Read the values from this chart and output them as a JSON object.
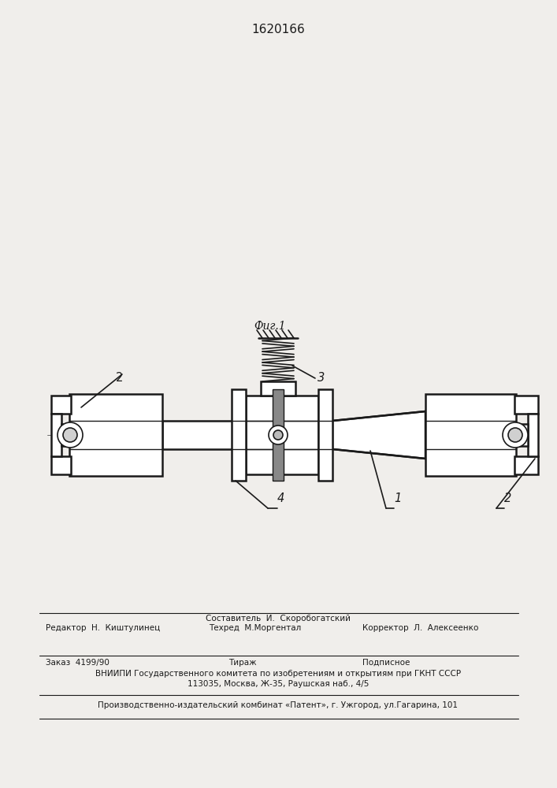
{
  "title": "1620166",
  "bg_color": "#f0eeeb",
  "line_color": "#1a1a1a",
  "label1": "1",
  "label2": "2",
  "label3": "3",
  "label4": "4",
  "fig_label": "Фиг.1",
  "footer": {
    "sestavitel": "Составитель  И.  Скоробогатский",
    "redaktor": "Редактор  Н.  Киштулинец",
    "tehred": "Техред  М.Моргентал",
    "korrektor": "Корректор  Л.  Алексеенко",
    "zakaz": "Заказ  4199/90",
    "tirazh": "Тираж",
    "podpisnoe": "Подписное",
    "vniiipi": "ВНИИПИ Государственного комитета по изобретениям и открытиям при ГКНТ СССР",
    "address": "113035, Москва, Ж-35, Раушская наб., 4/5",
    "publisher": "Производственно-издательский комбинат «Патент», г. Ужгород, ул.Гагарина, 101"
  }
}
